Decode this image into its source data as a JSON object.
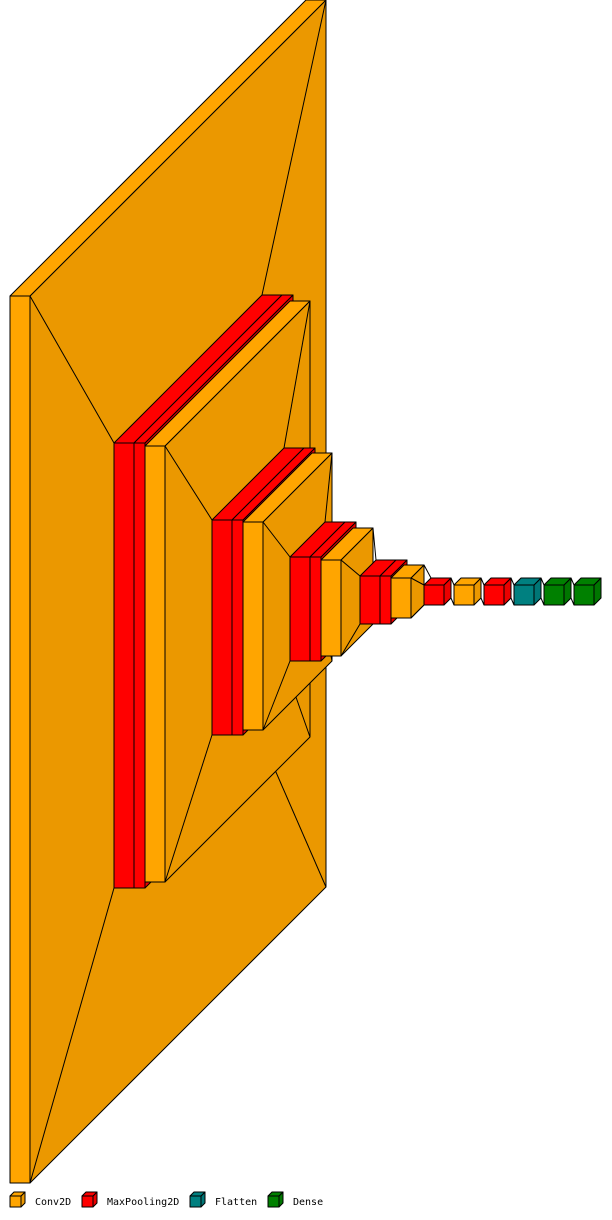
{
  "legend": {
    "items": [
      {
        "label": "Conv2D",
        "color": "#FFA500"
      },
      {
        "label": "MaxPooling2D",
        "color": "#FF0000"
      },
      {
        "label": "Flatten",
        "color": "#008080"
      },
      {
        "label": "Dense",
        "color": "#008000"
      }
    ]
  },
  "diagram": {
    "layers": [
      {
        "type": "Conv2D",
        "color": "#FFA500"
      },
      {
        "type": "MaxPooling2D",
        "color": "#FF0000"
      },
      {
        "type": "MaxPooling2D",
        "color": "#FF0000"
      },
      {
        "type": "Conv2D",
        "color": "#FFA500"
      },
      {
        "type": "MaxPooling2D",
        "color": "#FF0000"
      },
      {
        "type": "MaxPooling2D",
        "color": "#FF0000"
      },
      {
        "type": "Conv2D",
        "color": "#FFA500"
      },
      {
        "type": "MaxPooling2D",
        "color": "#FF0000"
      },
      {
        "type": "MaxPooling2D",
        "color": "#FF0000"
      },
      {
        "type": "Conv2D",
        "color": "#FFA500"
      },
      {
        "type": "MaxPooling2D",
        "color": "#FF0000"
      },
      {
        "type": "MaxPooling2D",
        "color": "#FF0000"
      },
      {
        "type": "Conv2D",
        "color": "#FFA500"
      },
      {
        "type": "MaxPooling2D",
        "color": "#FF0000"
      },
      {
        "type": "Conv2D",
        "color": "#FFA500"
      },
      {
        "type": "MaxPooling2D",
        "color": "#FF0000"
      },
      {
        "type": "Flatten",
        "color": "#008080"
      },
      {
        "type": "Dense",
        "color": "#008000"
      },
      {
        "type": "Dense",
        "color": "#008000"
      }
    ]
  }
}
